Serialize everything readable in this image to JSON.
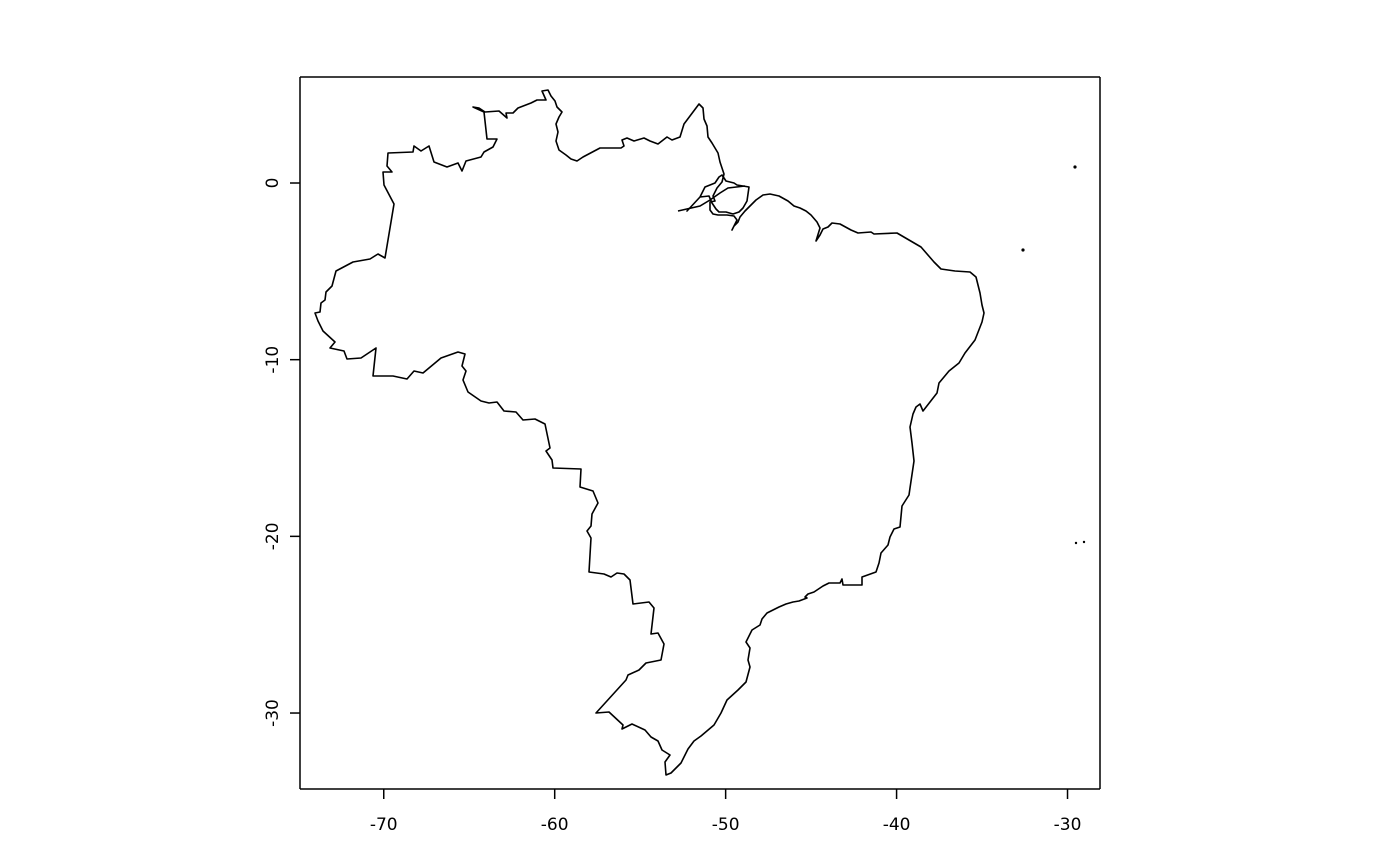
{
  "map": {
    "x_ticks": [
      {
        "value": -70,
        "label": "-70"
      },
      {
        "value": -60,
        "label": "-60"
      },
      {
        "value": -50,
        "label": "-50"
      },
      {
        "value": -40,
        "label": "-40"
      },
      {
        "value": -30,
        "label": "-30"
      }
    ],
    "y_ticks": [
      {
        "value": 0,
        "label": "0"
      },
      {
        "value": -10,
        "label": "-10"
      },
      {
        "value": -20,
        "label": "-20"
      },
      {
        "value": -30,
        "label": "-30"
      }
    ],
    "xlim": [
      -74.9,
      -28.1
    ],
    "ylim": [
      -34.3,
      6.0
    ],
    "outline_color": "#000000",
    "background_color": "#ffffff",
    "grid": false,
    "features": [
      "brazil-outline",
      "atlantic-islands"
    ]
  }
}
